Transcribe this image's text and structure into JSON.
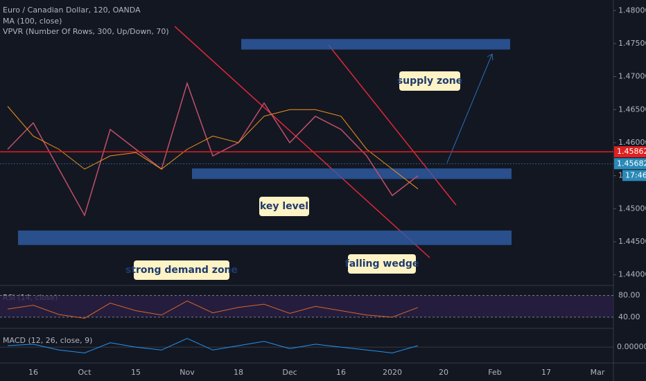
{
  "chart_data": {
    "type": "line",
    "title": "Euro / Canadian Dollar, 120, OANDA",
    "indicators": [
      "MA (100, close)",
      "VPVR (Number Of Rows, 300, Up/Down, 70)"
    ],
    "categories": [
      null,
      "16",
      null,
      "Oct",
      null,
      "15",
      null,
      "Nov",
      null,
      "18",
      null,
      "Dec",
      null,
      "16",
      null,
      "2020",
      null,
      "20",
      null,
      "Feb",
      null,
      "17",
      null,
      "Mar"
    ],
    "series": [
      {
        "name": "EUR/CAD",
        "color": "#c0506a",
        "values": [
          1.459,
          1.463,
          1.456,
          1.449,
          1.462,
          1.459,
          1.456,
          1.469,
          1.458,
          1.46,
          1.466,
          1.46,
          1.464,
          1.462,
          1.458,
          1.452,
          1.455,
          null,
          null,
          null,
          null,
          null,
          null,
          null
        ]
      },
      {
        "name": "MA (100, close)",
        "color": "#f7931a",
        "values": [
          1.4655,
          1.461,
          1.459,
          1.456,
          1.458,
          1.4585,
          1.456,
          1.459,
          1.461,
          1.46,
          1.464,
          1.465,
          1.465,
          1.464,
          1.459,
          1.456,
          1.453,
          null,
          null,
          null,
          null,
          null,
          null,
          null
        ]
      }
    ],
    "ylim": [
      1.4816,
      1.4386
    ],
    "yticks": [
      {
        "value": 1.48,
        "label": "1.48000"
      },
      {
        "value": 1.475,
        "label": "1.47500"
      },
      {
        "value": 1.47,
        "label": "1.47000"
      },
      {
        "value": 1.465,
        "label": "1.46500"
      },
      {
        "value": 1.46,
        "label": "1.46000"
      },
      {
        "value": 1.455,
        "label": "1.45500"
      },
      {
        "value": 1.45,
        "label": "1.45000"
      },
      {
        "value": 1.445,
        "label": "1.44500"
      },
      {
        "value": 1.44,
        "label": "1.44000"
      }
    ],
    "price_lines": [
      {
        "value": 1.45862,
        "label": "1.45862",
        "color": "#e02020"
      },
      {
        "value": 1.45682,
        "label": "1.45682",
        "color": "#2a8ab8"
      }
    ],
    "countdown": "17:46",
    "zones": [
      {
        "label": "supply zone",
        "top": 1.4757,
        "bottom": 1.4741
      },
      {
        "label": "key level",
        "top": 1.4561,
        "bottom": 1.4545
      },
      {
        "label": "strong demand zone",
        "top": 1.4467,
        "bottom": 1.4445
      }
    ],
    "wedge_label": "falling wedge",
    "rsi": {
      "title": "RSI (14, close)",
      "color": "#d9662b",
      "ylim": [
        96,
        22
      ],
      "yticks": [
        {
          "value": 80,
          "label": "80.00"
        },
        {
          "value": 40,
          "label": "40.00"
        }
      ],
      "values": [
        55,
        62,
        45,
        38,
        66,
        52,
        44,
        70,
        48,
        58,
        64,
        47,
        60,
        52,
        44,
        40,
        58,
        null,
        null,
        null,
        null,
        null,
        null,
        null
      ]
    },
    "macd": {
      "title": "MACD (12, 26, close, 9)",
      "color": "#2196f3",
      "ylim": [
        0.006,
        -0.005
      ],
      "yticks": [
        {
          "value": 0,
          "label": "0.00000"
        }
      ],
      "values": [
        0.0005,
        0.001,
        -0.001,
        -0.002,
        0.0015,
        0.0,
        -0.001,
        0.003,
        -0.001,
        0.0005,
        0.002,
        -0.0005,
        0.001,
        0.0,
        -0.001,
        -0.002,
        0.0005,
        null,
        null,
        null,
        null,
        null,
        null,
        null
      ]
    }
  }
}
